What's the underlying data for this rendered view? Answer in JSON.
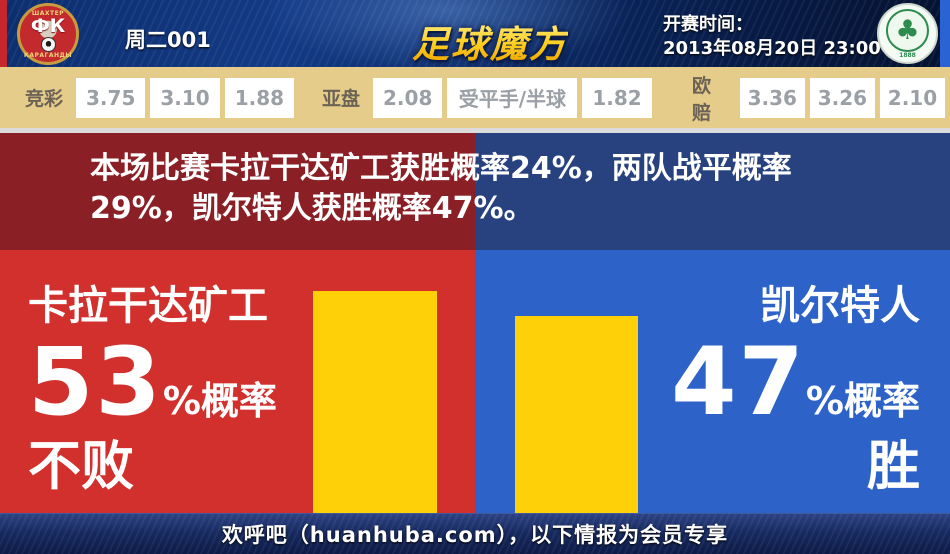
{
  "header": {
    "match_code": "周二001",
    "site_logo": "足球魔方",
    "kickoff_label": "开赛时间：",
    "kickoff_time": "2013年08月20日 23:00",
    "home_badge": {
      "top": "ШАХТЕР",
      "initials": "ФК",
      "bottom": "КАРАГАНДЫ"
    },
    "away_badge": {
      "clover": "♣",
      "year": "1888"
    }
  },
  "odds": {
    "groups": [
      {
        "label": "竞彩",
        "values": [
          "3.75",
          "3.10",
          "1.88"
        ]
      },
      {
        "label": "亚盘",
        "values": [
          "2.08",
          "受平手/半球",
          "1.82"
        ]
      },
      {
        "label": "欧赔",
        "values": [
          "3.36",
          "3.26",
          "2.10"
        ]
      }
    ]
  },
  "summary": {
    "line1": "本场比赛卡拉干达矿工获胜概率24%，两队战平概率",
    "line2": "29%，凯尔特人获胜概率47%。",
    "home_win_percent": 24,
    "draw_percent": 29,
    "away_win_percent": 47
  },
  "prediction": {
    "home": {
      "name": "卡拉干达矿工",
      "percent": "53",
      "suffix": "%概率",
      "outcome": "不败",
      "bar_percent": 53
    },
    "away": {
      "name": "凯尔特人",
      "percent": "47",
      "suffix": "%概率",
      "outcome": "胜",
      "bar_percent": 47
    }
  },
  "footer": {
    "text": "欢呼吧（huanhuba.com），以下情报为会员专享"
  },
  "colors": {
    "home_red": "#d2302c",
    "home_dark_red": "#8a2026",
    "away_blue": "#2d62c8",
    "away_dark_blue": "#28427f",
    "bar_yellow": "#fdd008",
    "odds_bg": "#e6cc8a",
    "header_navy": "#0b2a66",
    "logo_gold": "#ffcf1e"
  }
}
